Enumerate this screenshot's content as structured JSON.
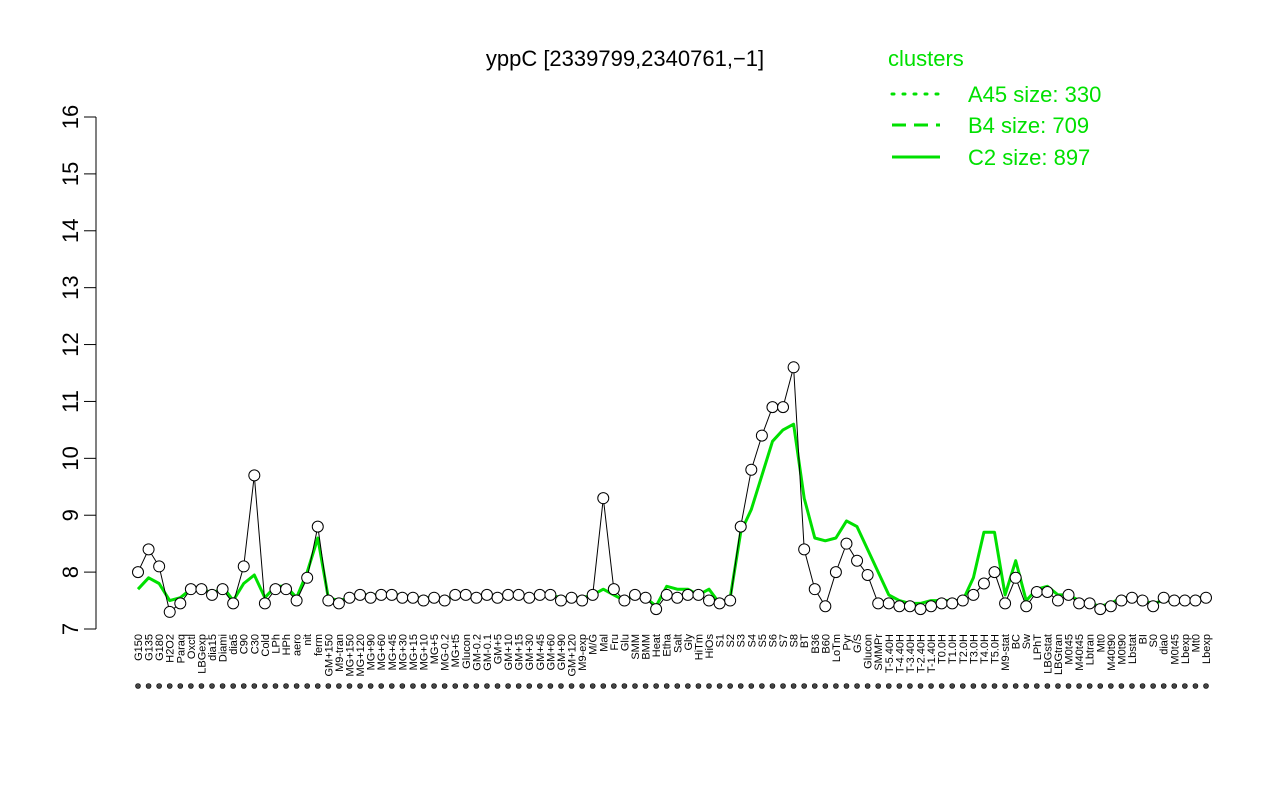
{
  "chart_data": {
    "type": "line",
    "title": "yppC [2339799,2340761,−1]",
    "xlabel": "",
    "ylabel": "",
    "ylim": [
      7,
      16
    ],
    "yticks": [
      7,
      8,
      9,
      10,
      11,
      12,
      13,
      14,
      15,
      16
    ],
    "grid": false,
    "legend": {
      "title": "clusters",
      "placement": "top-right",
      "entries": [
        {
          "label": "A45 size: 330",
          "style": "dotted"
        },
        {
          "label": "B4 size: 709",
          "style": "dashed"
        },
        {
          "label": "C2 size: 897",
          "style": "solid"
        }
      ]
    },
    "colors": {
      "series": "#00e000",
      "points": "#000000",
      "legend": "#00e000"
    },
    "conditions": [
      {
        "label": "G150",
        "value": 8.0
      },
      {
        "label": "G135",
        "value": 8.4
      },
      {
        "label": "G180",
        "value": 8.1
      },
      {
        "label": "H2O2",
        "value": 7.3
      },
      {
        "label": "Paraq",
        "value": 7.45
      },
      {
        "label": "Oxctl",
        "value": 7.7
      },
      {
        "label": "LBGexp",
        "value": 7.7
      },
      {
        "label": "dia15",
        "value": 7.6
      },
      {
        "label": "Diami",
        "value": 7.7
      },
      {
        "label": "dia5",
        "value": 7.45
      },
      {
        "label": "C90",
        "value": 8.1
      },
      {
        "label": "C30",
        "value": 9.7
      },
      {
        "label": "Cold",
        "value": 7.45
      },
      {
        "label": "LPh",
        "value": 7.7
      },
      {
        "label": "HPh",
        "value": 7.7
      },
      {
        "label": "aero",
        "value": 7.5
      },
      {
        "label": "nit",
        "value": 7.9
      },
      {
        "label": "ferm",
        "value": 8.8
      },
      {
        "label": "GM+150",
        "value": 7.5
      },
      {
        "label": "M9-tran",
        "value": 7.45
      },
      {
        "label": "MG+150",
        "value": 7.55
      },
      {
        "label": "MG+120",
        "value": 7.6
      },
      {
        "label": "MG+90",
        "value": 7.55
      },
      {
        "label": "MG+60",
        "value": 7.6
      },
      {
        "label": "MG+45",
        "value": 7.6
      },
      {
        "label": "MG+30",
        "value": 7.55
      },
      {
        "label": "MG+15",
        "value": 7.55
      },
      {
        "label": "MG+10",
        "value": 7.5
      },
      {
        "label": "MG+5",
        "value": 7.55
      },
      {
        "label": "MG-0.2",
        "value": 7.5
      },
      {
        "label": "MG+t5",
        "value": 7.6
      },
      {
        "label": "Glucon",
        "value": 7.6
      },
      {
        "label": "GM-0.2",
        "value": 7.55
      },
      {
        "label": "GM-0.1",
        "value": 7.6
      },
      {
        "label": "GM+5",
        "value": 7.55
      },
      {
        "label": "GM+10",
        "value": 7.6
      },
      {
        "label": "GM+15",
        "value": 7.6
      },
      {
        "label": "GM+30",
        "value": 7.55
      },
      {
        "label": "GM+45",
        "value": 7.6
      },
      {
        "label": "GM+60",
        "value": 7.6
      },
      {
        "label": "GM+90",
        "value": 7.5
      },
      {
        "label": "GM+120",
        "value": 7.55
      },
      {
        "label": "M9-exp",
        "value": 7.5
      },
      {
        "label": "M/G",
        "value": 7.6
      },
      {
        "label": "Mal",
        "value": 9.3
      },
      {
        "label": "Fru",
        "value": 7.7
      },
      {
        "label": "Glu",
        "value": 7.5
      },
      {
        "label": "SMM",
        "value": 7.6
      },
      {
        "label": "BMM",
        "value": 7.55
      },
      {
        "label": "Heat",
        "value": 7.35
      },
      {
        "label": "Etha",
        "value": 7.6
      },
      {
        "label": "Salt",
        "value": 7.55
      },
      {
        "label": "Gly",
        "value": 7.6
      },
      {
        "label": "HiTm",
        "value": 7.6
      },
      {
        "label": "HiOs",
        "value": 7.5
      },
      {
        "label": "S1",
        "value": 7.45
      },
      {
        "label": "S2",
        "value": 7.5
      },
      {
        "label": "S3",
        "value": 8.8
      },
      {
        "label": "S4",
        "value": 9.8
      },
      {
        "label": "S5",
        "value": 10.4
      },
      {
        "label": "S6",
        "value": 10.9
      },
      {
        "label": "S7",
        "value": 10.9
      },
      {
        "label": "S8",
        "value": 11.6
      },
      {
        "label": "BT",
        "value": 8.4
      },
      {
        "label": "B36",
        "value": 7.7
      },
      {
        "label": "B60",
        "value": 7.4
      },
      {
        "label": "LoTm",
        "value": 8.0
      },
      {
        "label": "Pyr",
        "value": 8.5
      },
      {
        "label": "G/S",
        "value": 8.2
      },
      {
        "label": "Glucon",
        "value": 7.95
      },
      {
        "label": "SMMPr",
        "value": 7.45
      },
      {
        "label": "T-5.40H",
        "value": 7.45
      },
      {
        "label": "T-4.40H",
        "value": 7.4
      },
      {
        "label": "T-3.40H",
        "value": 7.4
      },
      {
        "label": "T-2.40H",
        "value": 7.35
      },
      {
        "label": "T-1.40H",
        "value": 7.4
      },
      {
        "label": "T0.0H",
        "value": 7.45
      },
      {
        "label": "T1.0H",
        "value": 7.45
      },
      {
        "label": "T2.0H",
        "value": 7.5
      },
      {
        "label": "T3.0H",
        "value": 7.6
      },
      {
        "label": "T4.0H",
        "value": 7.8
      },
      {
        "label": "T5.0H",
        "value": 8.0
      },
      {
        "label": "M9-stat",
        "value": 7.45
      },
      {
        "label": "BC",
        "value": 7.9
      },
      {
        "label": "Sw",
        "value": 7.4
      },
      {
        "label": "LPhT",
        "value": 7.65
      },
      {
        "label": "LBGstat",
        "value": 7.65
      },
      {
        "label": "LBGtran",
        "value": 7.5
      },
      {
        "label": "M0t45",
        "value": 7.6
      },
      {
        "label": "M40t45",
        "value": 7.45
      },
      {
        "label": "Lbtran",
        "value": 7.45
      },
      {
        "label": "Mt0",
        "value": 7.35
      },
      {
        "label": "M40t90",
        "value": 7.4
      },
      {
        "label": "M0t90",
        "value": 7.5
      },
      {
        "label": "Lbstat",
        "value": 7.55
      },
      {
        "label": "BI",
        "value": 7.5
      },
      {
        "label": "S0",
        "value": 7.4
      },
      {
        "label": "dia0",
        "value": 7.55
      },
      {
        "label": "M0t45",
        "value": 7.5
      },
      {
        "label": "Lbexp",
        "value": 7.5
      },
      {
        "label": "Mt0",
        "value": 7.5
      },
      {
        "label": "Lbexp",
        "value": 7.55
      }
    ],
    "series": [
      {
        "style": "solid",
        "values": [
          7.7,
          7.9,
          7.8,
          7.5,
          7.55,
          7.7,
          7.75,
          7.6,
          7.75,
          7.5,
          7.8,
          7.95,
          7.55,
          7.75,
          7.75,
          7.55,
          8.0,
          8.6,
          7.55,
          7.5,
          7.55,
          7.6,
          7.6,
          7.6,
          7.6,
          7.6,
          7.55,
          7.55,
          7.55,
          7.5,
          7.6,
          7.6,
          7.55,
          7.6,
          7.55,
          7.6,
          7.6,
          7.55,
          7.6,
          7.6,
          7.55,
          7.55,
          7.55,
          7.6,
          7.7,
          7.6,
          7.5,
          7.6,
          7.55,
          7.4,
          7.75,
          7.7,
          7.7,
          7.6,
          7.7,
          7.45,
          7.55,
          8.7,
          9.1,
          9.7,
          10.3,
          10.5,
          10.6,
          9.3,
          8.6,
          8.55,
          8.6,
          8.9,
          8.8,
          8.4,
          8.0,
          7.6,
          7.5,
          7.45,
          7.45,
          7.5,
          7.5,
          7.5,
          7.5,
          7.9,
          8.7,
          8.7,
          7.6,
          8.2,
          7.5,
          7.7,
          7.75,
          7.6,
          7.6,
          7.5,
          7.45,
          7.4,
          7.45,
          7.55,
          7.55,
          7.5,
          7.45,
          7.5,
          7.5,
          7.5,
          7.55,
          7.55
        ]
      }
    ]
  }
}
